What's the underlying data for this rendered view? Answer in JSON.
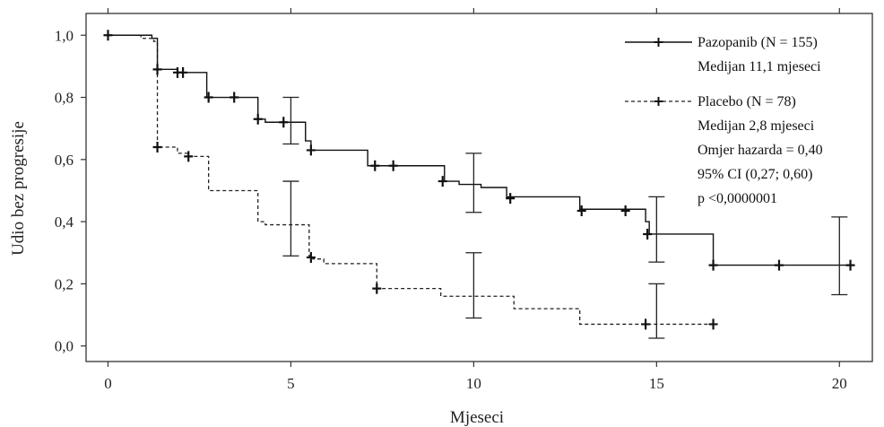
{
  "chart_data": {
    "type": "line",
    "xlabel": "Mjeseci",
    "ylabel": "Udio bez progresije",
    "xlim": [
      -0.6,
      20.9
    ],
    "ylim": [
      -0.05,
      1.07
    ],
    "x_ticks": [
      0,
      5,
      10,
      15,
      20
    ],
    "x_tick_labels": [
      "0",
      "5",
      "10",
      "15",
      "20"
    ],
    "y_ticks": [
      0.0,
      0.2,
      0.4,
      0.6,
      0.8,
      1.0
    ],
    "y_tick_labels": [
      "0,0",
      "0,2",
      "0,4",
      "0,6",
      "0,8",
      "1,0"
    ],
    "grid": false,
    "legend_position": "top-right",
    "series": [
      {
        "name": "Pazopanib (N = 155)",
        "line_style": "solid",
        "color": "#111111",
        "steps": [
          [
            0,
            1.0
          ],
          [
            1.2,
            0.99
          ],
          [
            1.35,
            0.89
          ],
          [
            1.9,
            0.88
          ],
          [
            2.7,
            0.8
          ],
          [
            4.1,
            0.73
          ],
          [
            4.3,
            0.72
          ],
          [
            5.0,
            0.72
          ],
          [
            5.4,
            0.66
          ],
          [
            5.55,
            0.63
          ],
          [
            7.1,
            0.58
          ],
          [
            8.5,
            0.58
          ],
          [
            9.2,
            0.53
          ],
          [
            9.6,
            0.52
          ],
          [
            10.2,
            0.51
          ],
          [
            10.9,
            0.48
          ],
          [
            12.9,
            0.44
          ],
          [
            14.7,
            0.4
          ],
          [
            14.8,
            0.36
          ],
          [
            16.55,
            0.26
          ],
          [
            20.3,
            0.26
          ]
        ],
        "censor_marks": [
          [
            0,
            1.0
          ],
          [
            1.35,
            0.89
          ],
          [
            1.9,
            0.88
          ],
          [
            2.05,
            0.88
          ],
          [
            2.75,
            0.8
          ],
          [
            3.45,
            0.8
          ],
          [
            4.1,
            0.73
          ],
          [
            4.8,
            0.72
          ],
          [
            5.55,
            0.63
          ],
          [
            7.3,
            0.58
          ],
          [
            7.8,
            0.58
          ],
          [
            9.15,
            0.53
          ],
          [
            11.0,
            0.475
          ],
          [
            12.95,
            0.435
          ],
          [
            14.15,
            0.435
          ],
          [
            14.75,
            0.36
          ],
          [
            16.55,
            0.26
          ],
          [
            18.35,
            0.26
          ],
          [
            20.3,
            0.26
          ]
        ],
        "ci_bars": [
          [
            5.0,
            0.65,
            0.8
          ],
          [
            10.0,
            0.43,
            0.62
          ],
          [
            15.0,
            0.27,
            0.48
          ],
          [
            20.0,
            0.165,
            0.415
          ]
        ]
      },
      {
        "name": "Placebo (N = 78)",
        "line_style": "dashed",
        "color": "#222222",
        "steps": [
          [
            0,
            1.0
          ],
          [
            0.9,
            0.99
          ],
          [
            1.25,
            0.98
          ],
          [
            1.35,
            0.64
          ],
          [
            1.9,
            0.62
          ],
          [
            2.2,
            0.61
          ],
          [
            2.75,
            0.5
          ],
          [
            4.1,
            0.4
          ],
          [
            4.3,
            0.39
          ],
          [
            5.5,
            0.29
          ],
          [
            5.6,
            0.28
          ],
          [
            5.9,
            0.265
          ],
          [
            7.35,
            0.185
          ],
          [
            9.1,
            0.16
          ],
          [
            11.1,
            0.12
          ],
          [
            12.9,
            0.07
          ],
          [
            16.55,
            0.07
          ]
        ],
        "censor_marks": [
          [
            1.35,
            0.64
          ],
          [
            2.2,
            0.61
          ],
          [
            5.55,
            0.285
          ],
          [
            7.35,
            0.185
          ],
          [
            14.7,
            0.07
          ],
          [
            16.55,
            0.07
          ]
        ],
        "ci_bars": [
          [
            5.0,
            0.29,
            0.53
          ],
          [
            10.0,
            0.09,
            0.3
          ],
          [
            15.0,
            0.025,
            0.2
          ]
        ]
      }
    ],
    "legend": {
      "pazopanib_label": "Pazopanib (N = 155)",
      "pazopanib_median": "Medijan 11,1 mjeseci",
      "placebo_label": "Placebo (N = 78)",
      "placebo_median": "Medijan 2,8 mjeseci",
      "hazard_ratio": "Omjer hazarda = 0,40",
      "ci": "95% CI (0,27; 0,60)",
      "p_value": "p <0,0000001"
    }
  }
}
